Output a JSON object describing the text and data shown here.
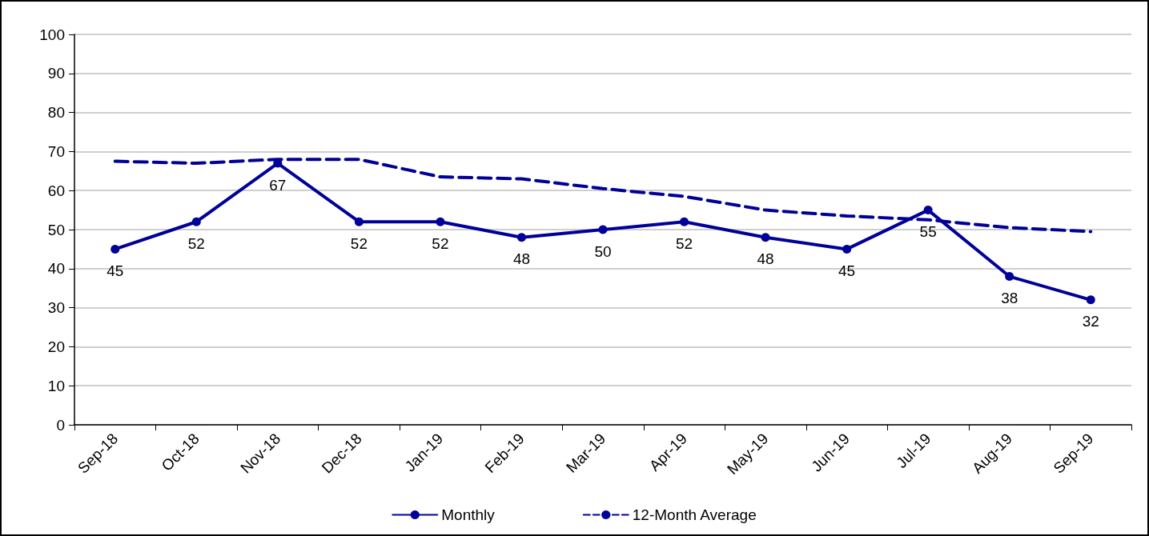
{
  "chart_data": {
    "type": "line",
    "categories": [
      "Sep-18",
      "Oct-18",
      "Nov-18",
      "Dec-18",
      "Jan-19",
      "Feb-19",
      "Mar-19",
      "Apr-19",
      "May-19",
      "Jun-19",
      "Jul-19",
      "Aug-19",
      "Sep-19"
    ],
    "series": [
      {
        "name": "Monthly",
        "color": "#000099",
        "marker": "circle",
        "line_style": "solid",
        "data_labels": true,
        "values": [
          45,
          52,
          67,
          52,
          52,
          48,
          50,
          52,
          48,
          45,
          55,
          38,
          32
        ]
      },
      {
        "name": "12-Month Average",
        "color": "#000099",
        "marker": "none",
        "line_style": "dashed",
        "values": [
          67.5,
          67,
          68,
          68,
          63.5,
          63,
          60.5,
          58.5,
          55,
          53.5,
          52.5,
          50.5,
          49.5
        ]
      }
    ],
    "ylim": [
      0,
      100
    ],
    "yticks": [
      0,
      10,
      20,
      30,
      40,
      50,
      60,
      70,
      80,
      90,
      100
    ],
    "grid": "y",
    "legend": "bottom"
  }
}
